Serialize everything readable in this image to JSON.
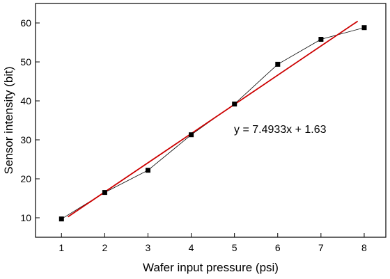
{
  "chart_data": {
    "type": "scatter",
    "title": "",
    "xlabel": "Wafer input pressure (psi)",
    "ylabel": "Sensor intensity (bit)",
    "xlim": [
      0.4,
      8.5
    ],
    "ylim": [
      5,
      65
    ],
    "x_ticks": [
      1,
      2,
      3,
      4,
      5,
      6,
      7,
      8
    ],
    "y_ticks": [
      10,
      20,
      30,
      40,
      50,
      60
    ],
    "grid": false,
    "series": [
      {
        "marker": "square",
        "connected": true,
        "color": "#000000",
        "points": [
          {
            "x": 1,
            "y": 9.7
          },
          {
            "x": 2,
            "y": 16.5
          },
          {
            "x": 3,
            "y": 22.2
          },
          {
            "x": 4,
            "y": 31.3
          },
          {
            "x": 5,
            "y": 39.2
          },
          {
            "x": 6,
            "y": 49.4
          },
          {
            "x": 7,
            "y": 55.8
          },
          {
            "x": 8,
            "y": 58.8
          }
        ]
      }
    ],
    "fit_line": {
      "color": "#cc0000",
      "slope": 7.4933,
      "intercept": 1.63,
      "x_range": [
        1.15,
        7.85
      ]
    },
    "annotation": "y = 7.4933x + 1.63"
  }
}
